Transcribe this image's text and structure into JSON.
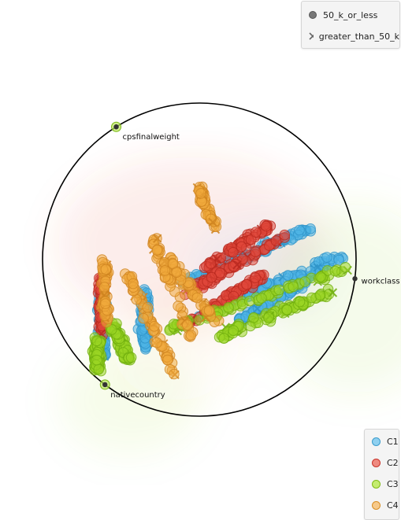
{
  "chart_data": {
    "type": "scatter",
    "title": "",
    "xlabel": "",
    "ylabel": "",
    "xlim": [
      -1.0,
      1.0
    ],
    "ylim": [
      -1.0,
      1.0
    ],
    "grid": false,
    "projection": "radviz",
    "anchors": [
      {
        "name": "cpsfinalweight",
        "angle_deg": 122
      },
      {
        "name": "workclass",
        "angle_deg": -7
      },
      {
        "name": "nativecountry",
        "angle_deg": 233
      }
    ],
    "shape_legend": {
      "position": "top-right",
      "items": [
        {
          "label": "50_k_or_less",
          "marker": "circle"
        },
        {
          "label": "greater_than_50_k",
          "marker": "x"
        }
      ]
    },
    "color_legend": {
      "position": "bottom-right",
      "items": [
        {
          "label": "C1",
          "color": "#4fb4e6"
        },
        {
          "label": "C2",
          "color": "#e0473a"
        },
        {
          "label": "C3",
          "color": "#9ad625"
        },
        {
          "label": "C4",
          "color": "#f0a93c"
        }
      ]
    },
    "cluster_regions": [
      {
        "cluster": "C1",
        "center": [
          0.26,
          -0.18
        ],
        "spread": [
          0.55,
          0.3
        ],
        "count": 520,
        "x_fraction": 0.05
      },
      {
        "cluster": "C2",
        "center": [
          0.05,
          -0.04
        ],
        "spread": [
          0.45,
          0.35
        ],
        "count": 300,
        "x_fraction": 0.12
      },
      {
        "cluster": "C3",
        "center": [
          0.38,
          -0.3
        ],
        "spread": [
          0.55,
          0.2
        ],
        "count": 360,
        "x_fraction": 0.03
      },
      {
        "cluster": "C4",
        "center": [
          -0.3,
          -0.1
        ],
        "spread": [
          0.4,
          0.35
        ],
        "count": 280,
        "x_fraction": 0.1
      }
    ]
  }
}
